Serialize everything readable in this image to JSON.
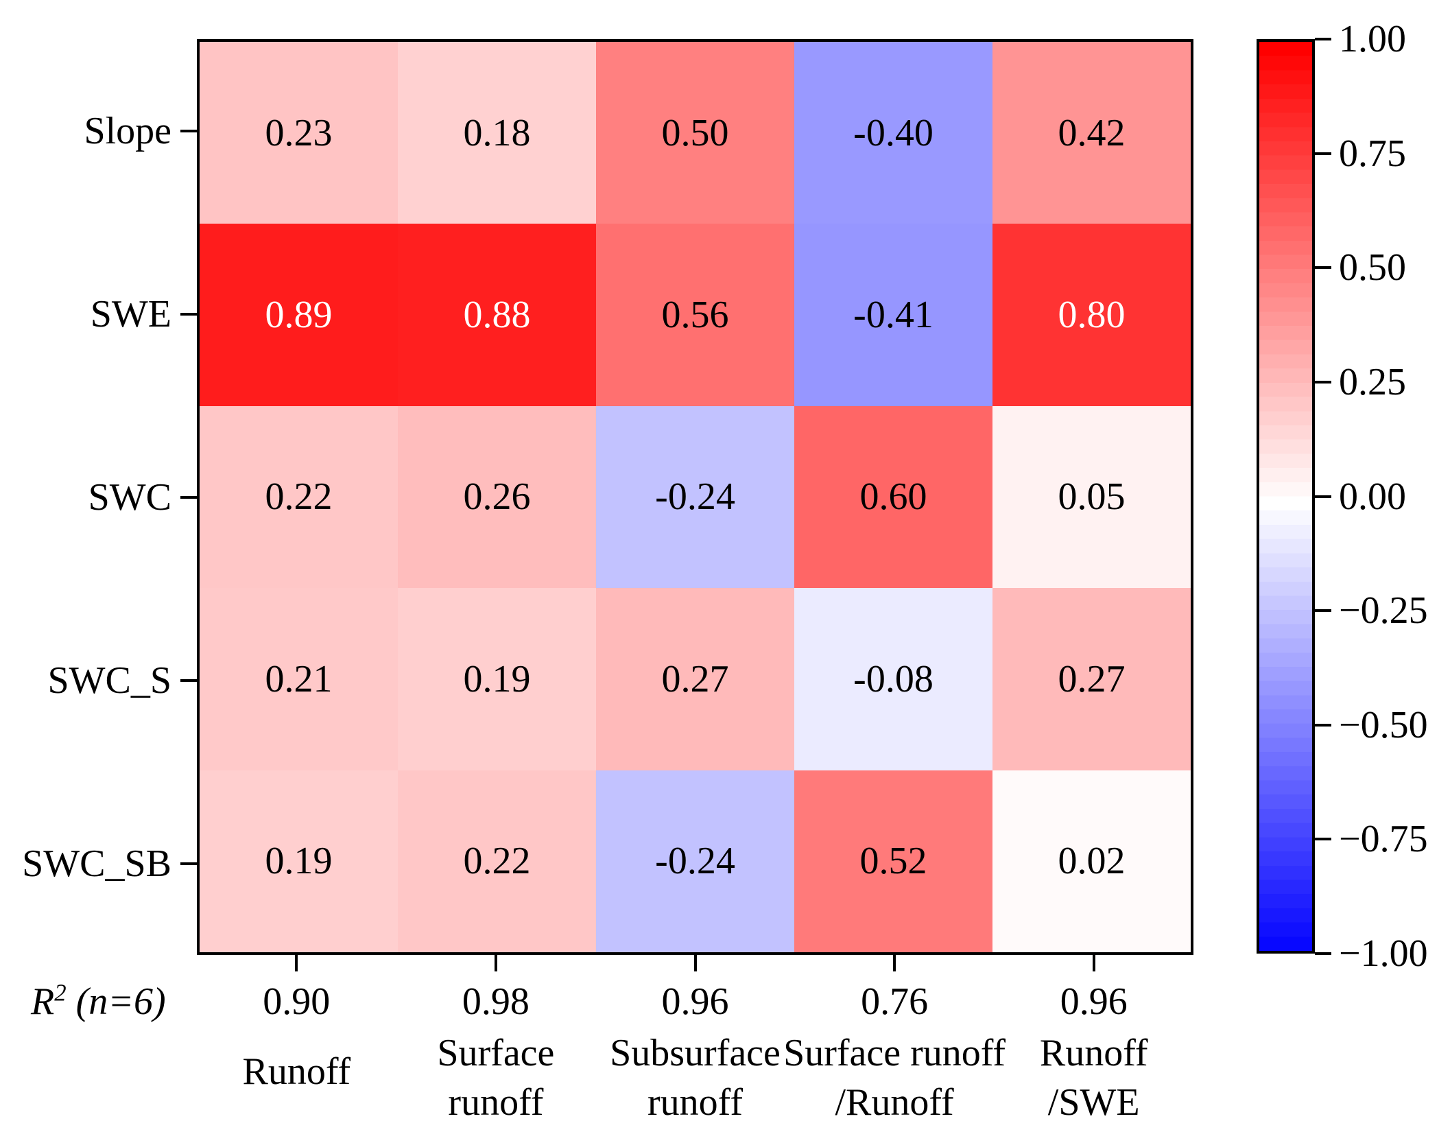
{
  "chart_data": {
    "type": "heatmap",
    "rows": [
      "Slope",
      "SWE",
      "SWC",
      "SWC_S",
      "SWC_SB"
    ],
    "columns": [
      "Runoff",
      "Surface runoff",
      "Subsurface runoff",
      "Surface runoff/Runoff",
      "Runoff/SWE"
    ],
    "column_label_lines": [
      [
        "Runoff"
      ],
      [
        "Surface",
        "runoff"
      ],
      [
        "Subsurface",
        "runoff"
      ],
      [
        "Surface runoff",
        "/Runoff"
      ],
      [
        "Runoff",
        "/SWE"
      ]
    ],
    "values": [
      [
        0.23,
        0.18,
        0.5,
        -0.4,
        0.42
      ],
      [
        0.89,
        0.88,
        0.56,
        -0.41,
        0.8
      ],
      [
        0.22,
        0.26,
        -0.24,
        0.6,
        0.05
      ],
      [
        0.21,
        0.19,
        0.27,
        -0.08,
        0.27
      ],
      [
        0.19,
        0.22,
        -0.24,
        0.52,
        0.02
      ]
    ],
    "cell_labels": [
      [
        "0.23",
        "0.18",
        "0.50",
        "-0.40",
        "0.42"
      ],
      [
        "0.89",
        "0.88",
        "0.56",
        "-0.41",
        "0.80"
      ],
      [
        "0.22",
        "0.26",
        "-0.24",
        "0.60",
        "0.05"
      ],
      [
        "0.21",
        "0.19",
        "0.27",
        "-0.08",
        "0.27"
      ],
      [
        "0.19",
        "0.22",
        "-0.24",
        "0.52",
        "0.02"
      ]
    ],
    "r2": {
      "label_base": "R",
      "label_sup": "2",
      "label_rest": " (n=6)",
      "values": [
        "0.90",
        "0.98",
        "0.96",
        "0.76",
        "0.96"
      ]
    },
    "colorbar": {
      "colormap": "bwr",
      "vmin": -1.0,
      "vmax": 1.0,
      "tick_values": [
        1.0,
        0.75,
        0.5,
        0.25,
        0.0,
        -0.25,
        -0.5,
        -0.75,
        -1.0
      ],
      "tick_labels": [
        "1.00",
        "0.75",
        "0.50",
        "0.25",
        "0.00",
        "−0.25",
        "−0.50",
        "−0.75",
        "−1.00"
      ],
      "top_color": "#ff0000",
      "mid_color": "#ffffff",
      "bottom_color": "#0000ff"
    },
    "white_text_threshold": 0.8,
    "grid": false,
    "legend_position": "right-colorbar"
  },
  "colors": {
    "border": "#000000",
    "text": "#000000",
    "cell_text_light": "#ffffff",
    "background": "#ffffff"
  }
}
